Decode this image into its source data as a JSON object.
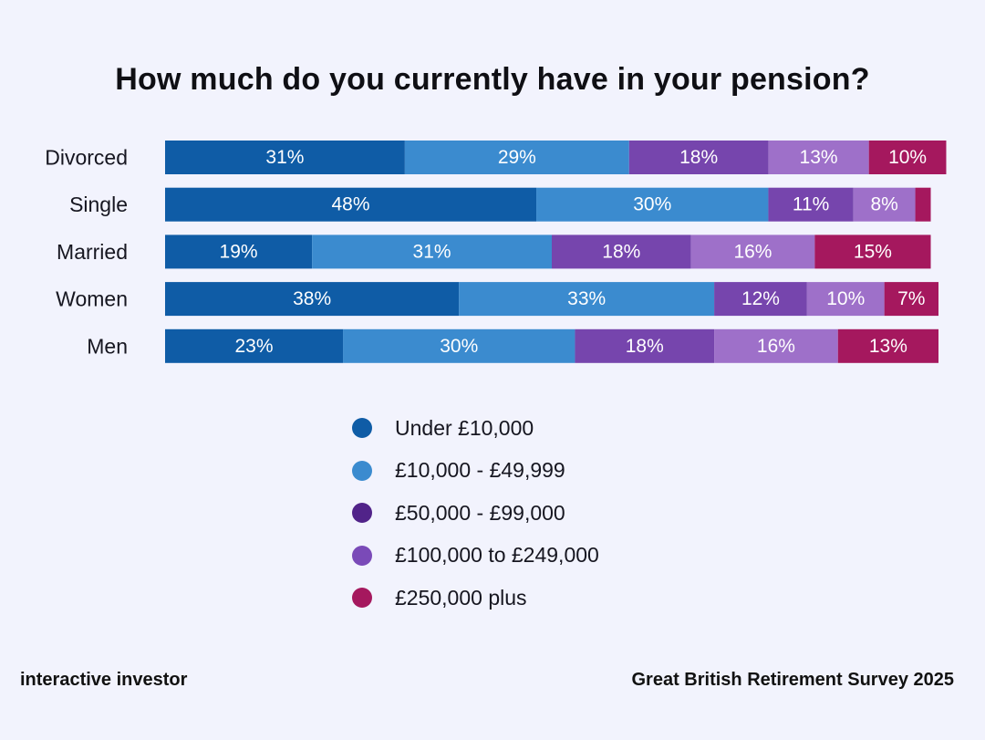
{
  "chart_data": {
    "type": "bar",
    "orientation": "horizontal",
    "stacked": true,
    "title": "How much do you currently have in your pension?",
    "categories": [
      "Divorced",
      "Single",
      "Married",
      "Women",
      "Men"
    ],
    "series": [
      {
        "name": "Under £10,000",
        "color": "#0f5ca6",
        "values": [
          31,
          48,
          19,
          38,
          23
        ],
        "labels": [
          "31%",
          "48%",
          "19%",
          "38%",
          "23%"
        ]
      },
      {
        "name": "£10,000 - £49,999",
        "color": "#3b8bcf",
        "values": [
          29,
          30,
          31,
          33,
          30
        ],
        "labels": [
          "29%",
          "30%",
          "31%",
          "33%",
          "30%"
        ]
      },
      {
        "name": "£50,000 - £99,000",
        "color": "#7645ad",
        "values": [
          18,
          11,
          18,
          12,
          18
        ],
        "labels": [
          "18%",
          "11%",
          "18%",
          "12%",
          "18%"
        ]
      },
      {
        "name": "£100,000 to £249,000",
        "color": "#9e70c9",
        "values": [
          13,
          8,
          16,
          10,
          16
        ],
        "labels": [
          "13%",
          "8%",
          "16%",
          "10%",
          "16%"
        ]
      },
      {
        "name": "£250,000 plus",
        "color": "#a5185e",
        "values": [
          10,
          2,
          15,
          7,
          13
        ],
        "labels": [
          "10%",
          "",
          "15%",
          "7%",
          "13%"
        ]
      }
    ],
    "legend_colors": [
      "#0f5ca6",
      "#3b8bcf",
      "#512389",
      "#7a4ab8",
      "#a5185e"
    ],
    "xlim": [
      0,
      100
    ],
    "grid": false,
    "legend_position": "bottom"
  },
  "footer": {
    "brand": "interactive investor",
    "source": "Great British Retirement Survey 2025"
  }
}
